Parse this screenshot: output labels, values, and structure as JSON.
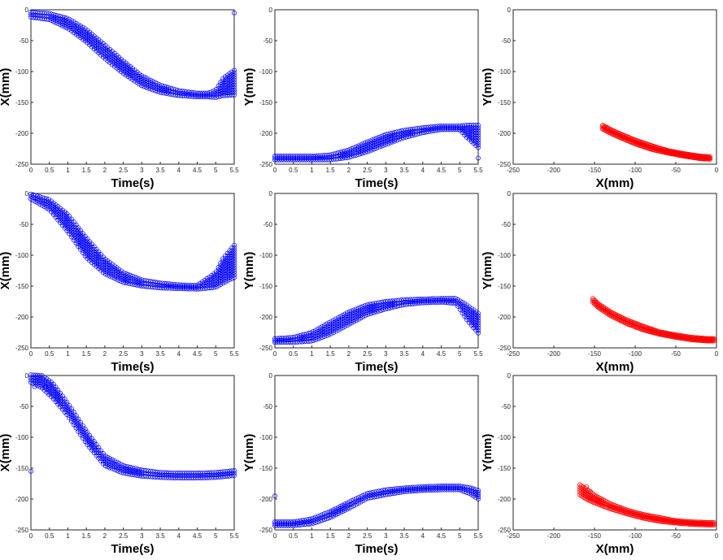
{
  "chart_data": [
    {
      "type": "scatter",
      "xlabel": "Time(s)",
      "ylabel": "X(mm)",
      "xlim": [
        0,
        5.5
      ],
      "ylim": [
        -250,
        0
      ],
      "xticks": [
        "0",
        "0.5",
        "1",
        "1.5",
        "2",
        "2.5",
        "3",
        "3.5",
        "4",
        "4.5",
        "5",
        "5.5"
      ],
      "yticks": [
        "0",
        "-50",
        "-100",
        "-150",
        "-200",
        "-250"
      ],
      "marker_color": "#0000ff",
      "series": [
        {
          "x": [
            0,
            0.5,
            1,
            1.5,
            2,
            2.5,
            3,
            3.5,
            4,
            4.5,
            4.8,
            5.0,
            5.2,
            5.5
          ],
          "y": [
            -8,
            -11,
            -22,
            -42,
            -68,
            -93,
            -115,
            -128,
            -135,
            -138,
            -138,
            -136,
            -125,
            -118
          ],
          "spread": [
            4,
            5,
            8,
            10,
            11,
            10,
            8,
            6,
            4,
            3,
            3,
            6,
            14,
            20
          ]
        }
      ],
      "outliers": [
        {
          "x": 5.5,
          "y": -5
        }
      ]
    },
    {
      "type": "scatter",
      "xlabel": "Time(s)",
      "ylabel": "Y(mm)",
      "xlim": [
        0,
        5.5
      ],
      "ylim": [
        -250,
        0
      ],
      "xticks": [
        "0",
        "0.5",
        "1",
        "1.5",
        "2",
        "2.5",
        "3",
        "3.5",
        "4",
        "4.5",
        "5",
        "5.5"
      ],
      "yticks": [
        "0",
        "-50",
        "-100",
        "-150",
        "-200",
        "-250"
      ],
      "marker_color": "#0000ff",
      "series": [
        {
          "x": [
            0,
            0.5,
            1,
            1.5,
            2,
            2.5,
            3,
            3.5,
            4,
            4.5,
            5.0,
            5.2,
            5.5
          ],
          "y": [
            -240,
            -240,
            -240,
            -239,
            -233,
            -222,
            -210,
            -201,
            -195,
            -191,
            -191,
            -197,
            -205
          ],
          "spread": [
            3,
            3,
            3,
            4,
            6,
            8,
            8,
            6,
            4,
            3,
            3,
            10,
            18
          ]
        }
      ],
      "outliers": [
        {
          "x": 5.5,
          "y": -240
        }
      ]
    },
    {
      "type": "scatter",
      "xlabel": "X(mm)",
      "ylabel": "Y(mm)",
      "xlim": [
        -250,
        0
      ],
      "ylim": [
        -250,
        0
      ],
      "xticks": [
        "-250",
        "-200",
        "-150",
        "-100",
        "-50",
        "0"
      ],
      "yticks": [
        "0",
        "-50",
        "-100",
        "-150",
        "-200",
        "-250"
      ],
      "marker_color": "#ff0000",
      "series": [
        {
          "x": [
            -140,
            -130,
            -120,
            -100,
            -80,
            -60,
            -40,
            -20,
            -8
          ],
          "y": [
            -190,
            -197,
            -203,
            -214,
            -223,
            -230,
            -235,
            -239,
            -240
          ],
          "spread": [
            3,
            3,
            3,
            3,
            3,
            2,
            2,
            2,
            2
          ]
        }
      ],
      "outliers": []
    },
    {
      "type": "scatter",
      "xlabel": "Time(s)",
      "ylabel": "X(mm)",
      "xlim": [
        0,
        5.5
      ],
      "ylim": [
        -250,
        0
      ],
      "xticks": [
        "0",
        "0.5",
        "1",
        "1.5",
        "2",
        "2.5",
        "3",
        "3.5",
        "4",
        "4.5",
        "5",
        "5.5"
      ],
      "yticks": [
        "0",
        "-50",
        "-100",
        "-150",
        "-200",
        "-250"
      ],
      "marker_color": "#0000ff",
      "series": [
        {
          "x": [
            0,
            0.5,
            1,
            1.5,
            2,
            2.5,
            3,
            3.5,
            4,
            4.5,
            5.0,
            5.2,
            5.5
          ],
          "y": [
            -5,
            -18,
            -48,
            -88,
            -118,
            -136,
            -145,
            -149,
            -151,
            -152,
            -140,
            -125,
            -110
          ],
          "spread": [
            4,
            8,
            14,
            16,
            12,
            8,
            5,
            4,
            3,
            3,
            12,
            20,
            26
          ]
        }
      ],
      "outliers": []
    },
    {
      "type": "scatter",
      "xlabel": "Time(s)",
      "ylabel": "Y(mm)",
      "xlim": [
        0,
        5.5
      ],
      "ylim": [
        -250,
        0
      ],
      "xticks": [
        "0",
        "0.5",
        "1",
        "1.5",
        "2",
        "2.5",
        "3",
        "3.5",
        "4",
        "4.5",
        "5",
        "5.5"
      ],
      "yticks": [
        "0",
        "-50",
        "-100",
        "-150",
        "-200",
        "-250"
      ],
      "marker_color": "#0000ff",
      "series": [
        {
          "x": [
            0,
            0.5,
            1,
            1.5,
            2,
            2.5,
            3,
            3.5,
            4,
            4.5,
            4.9,
            5.2,
            5.5
          ],
          "y": [
            -238,
            -237,
            -232,
            -218,
            -202,
            -188,
            -181,
            -176,
            -174,
            -173,
            -174,
            -193,
            -210
          ],
          "spread": [
            3,
            4,
            7,
            10,
            10,
            8,
            6,
            4,
            3,
            3,
            4,
            12,
            16
          ]
        }
      ],
      "outliers": []
    },
    {
      "type": "scatter",
      "xlabel": "X(mm)",
      "ylabel": "Y(mm)",
      "xlim": [
        -250,
        0
      ],
      "ylim": [
        -250,
        0
      ],
      "xticks": [
        "-250",
        "-200",
        "-150",
        "-100",
        "-50",
        "0"
      ],
      "yticks": [
        "0",
        "-50",
        "-100",
        "-150",
        "-200",
        "-250"
      ],
      "marker_color": "#ff0000",
      "series": [
        {
          "x": [
            -152,
            -145,
            -130,
            -110,
            -90,
            -70,
            -50,
            -30,
            -10,
            -3
          ],
          "y": [
            -173,
            -182,
            -195,
            -208,
            -218,
            -226,
            -231,
            -235,
            -237,
            -237
          ],
          "spread": [
            3,
            3,
            3,
            3,
            3,
            2,
            2,
            2,
            2,
            2
          ]
        }
      ],
      "outliers": []
    },
    {
      "type": "scatter",
      "xlabel": "Time(s)",
      "ylabel": "X(mm)",
      "xlim": [
        0,
        5.5
      ],
      "ylim": [
        -250,
        0
      ],
      "xticks": [
        "0",
        "0.5",
        "1",
        "1.5",
        "2",
        "2.5",
        "3",
        "3.5",
        "4",
        "4.5",
        "5",
        "5.5"
      ],
      "yticks": [
        "0",
        "-50",
        "-100",
        "-150",
        "-200",
        "-250"
      ],
      "marker_color": "#0000ff",
      "series": [
        {
          "x": [
            0,
            0.3,
            0.6,
            1,
            1.5,
            2,
            2.5,
            3,
            3.5,
            4,
            4.5,
            5,
            5.5
          ],
          "y": [
            -5,
            -10,
            -25,
            -55,
            -100,
            -138,
            -152,
            -158,
            -161,
            -162,
            -162,
            -161,
            -158
          ],
          "spread": [
            6,
            10,
            12,
            10,
            10,
            8,
            6,
            5,
            4,
            4,
            4,
            4,
            4
          ]
        }
      ],
      "outliers": [
        {
          "x": 0,
          "y": -155
        },
        {
          "x": 0.1,
          "y": -18
        },
        {
          "x": 0.4,
          "y": -18
        }
      ]
    },
    {
      "type": "scatter",
      "xlabel": "Time(s)",
      "ylabel": "Y(mm)",
      "xlim": [
        0,
        5.5
      ],
      "ylim": [
        -250,
        0
      ],
      "xticks": [
        "0",
        "0.5",
        "1",
        "1.5",
        "2",
        "2.5",
        "3",
        "3.5",
        "4",
        "4.5",
        "5",
        "5.5"
      ],
      "yticks": [
        "0",
        "-50",
        "-100",
        "-150",
        "-200",
        "-250"
      ],
      "marker_color": "#0000ff",
      "series": [
        {
          "x": [
            0,
            0.5,
            1,
            1.5,
            2,
            2.5,
            3,
            3.5,
            4,
            4.5,
            5,
            5.3,
            5.5
          ],
          "y": [
            -240,
            -240,
            -236,
            -225,
            -210,
            -195,
            -189,
            -185,
            -183,
            -182,
            -182,
            -187,
            -193
          ],
          "spread": [
            3,
            3,
            4,
            5,
            5,
            4,
            4,
            3,
            3,
            3,
            3,
            5,
            7
          ]
        }
      ],
      "outliers": [
        {
          "x": 0,
          "y": -195
        }
      ]
    },
    {
      "type": "scatter",
      "xlabel": "X(mm)",
      "ylabel": "Y(mm)",
      "xlim": [
        -250,
        0
      ],
      "ylim": [
        -250,
        0
      ],
      "xticks": [
        "-250",
        "-200",
        "-150",
        "-100",
        "-50",
        "0"
      ],
      "yticks": [
        "0",
        "-50",
        "-100",
        "-150",
        "-200",
        "-250"
      ],
      "marker_color": "#ff0000",
      "series": [
        {
          "x": [
            -168,
            -160,
            -150,
            -130,
            -110,
            -90,
            -70,
            -50,
            -30,
            -10,
            -3
          ],
          "y": [
            -185,
            -192,
            -200,
            -212,
            -221,
            -228,
            -233,
            -237,
            -239,
            -240,
            -240
          ],
          "spread": [
            8,
            8,
            6,
            4,
            3,
            3,
            3,
            2,
            2,
            2,
            2
          ]
        }
      ],
      "outliers": [
        {
          "x": -160,
          "y": -180
        },
        {
          "x": -155,
          "y": -188
        }
      ]
    }
  ]
}
